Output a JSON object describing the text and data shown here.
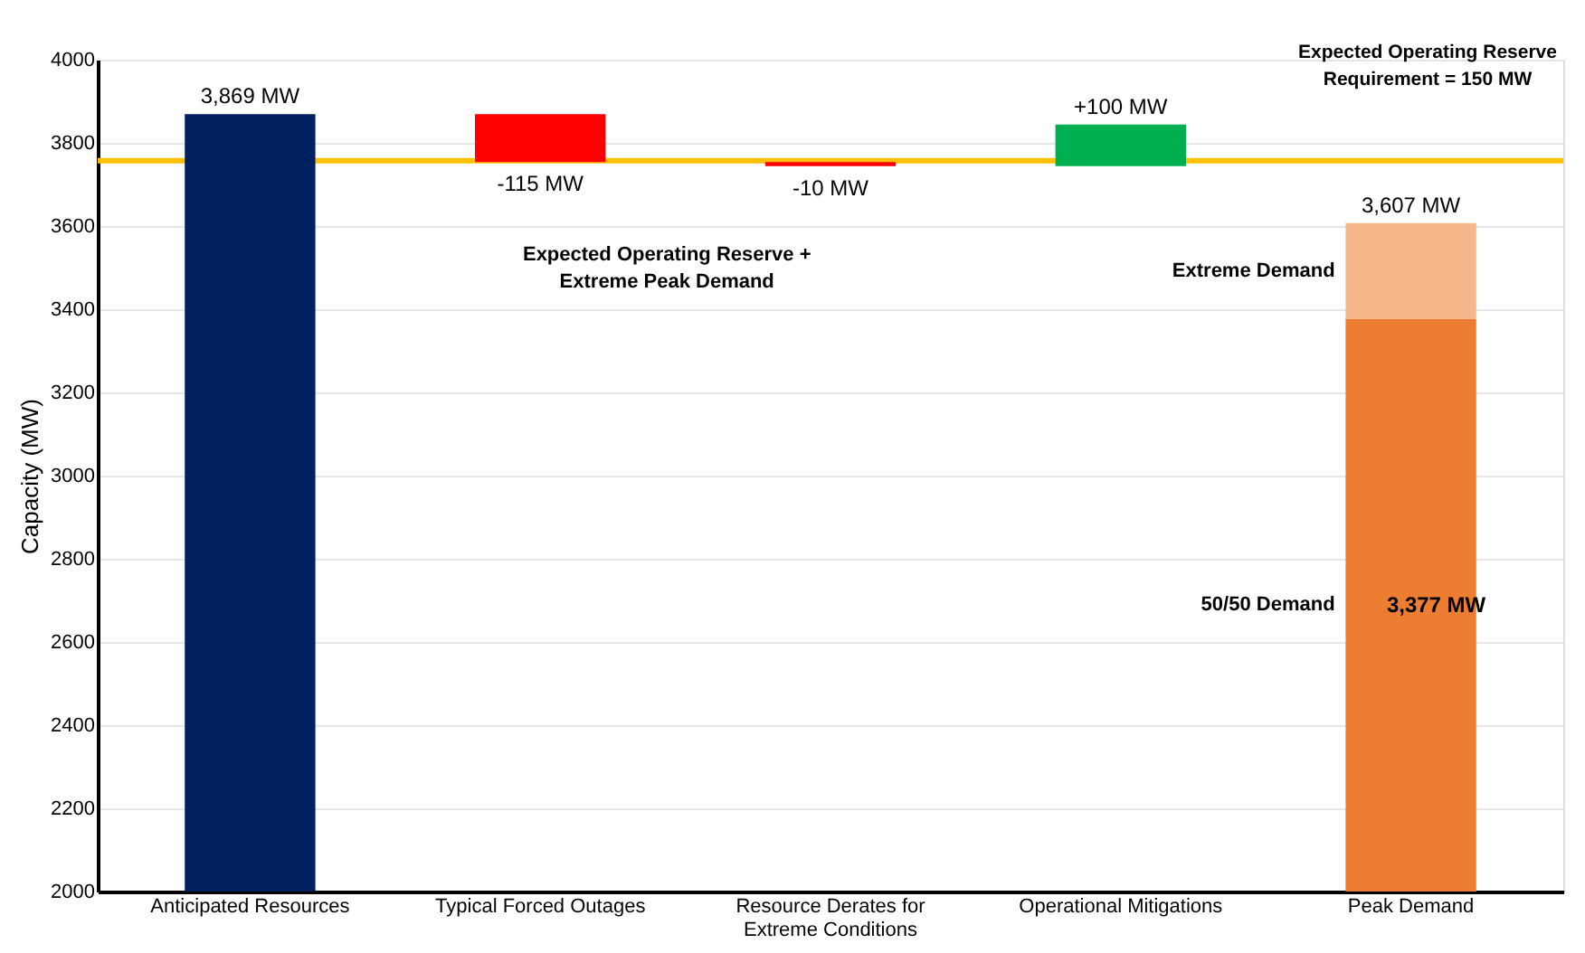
{
  "chart_data": {
    "type": "bar",
    "ylabel": "Capacity (MW)",
    "categories": [
      "Anticipated Resources",
      "Typical Forced Outages",
      "Resource Derates for Extreme Conditions",
      "Operational Mitigations",
      "Peak Demand"
    ],
    "series": [
      {
        "values": [
          3869,
          -115,
          -10,
          100,
          3377
        ],
        "base": [
          0,
          3869,
          3754,
          3744,
          0
        ],
        "colors": [
          "#002060",
          "#ff0000",
          "#ff0000",
          "#00b050",
          "#ed7d31"
        ],
        "value_labels": [
          "3,869 MW",
          "-115 MW",
          "-10 MW",
          "+100 MW",
          "3,377 MW"
        ]
      },
      {
        "values": [
          null,
          null,
          null,
          null,
          230
        ],
        "base": [
          null,
          null,
          null,
          null,
          3377
        ],
        "color": "#f6b78a"
      }
    ],
    "totals": [
      null,
      null,
      null,
      null,
      "3,607 MW"
    ],
    "ref_lines": [
      {
        "axis": "y",
        "value": 3757,
        "color": "#ffc000"
      }
    ],
    "annotations": [
      "Expected Operating Reserve Requirement = 150 MW",
      "Expected Operating Reserve + Extreme Peak Demand",
      "Extreme Demand",
      "50/50 Demand"
    ],
    "ylim": [
      2000,
      4000
    ],
    "yticks": [
      2000,
      2200,
      2400,
      2600,
      2800,
      3000,
      3200,
      3400,
      3600,
      3800,
      4000
    ],
    "grid": "y"
  }
}
